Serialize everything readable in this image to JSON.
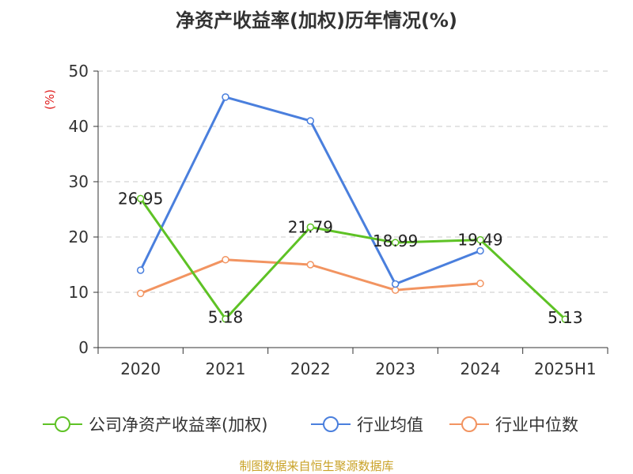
{
  "chart_data": {
    "type": "line",
    "title": "净资产收益率(加权)历年情况(%)",
    "ylabel": "(%)",
    "xlabel": "",
    "categories": [
      "2020",
      "2021",
      "2022",
      "2023",
      "2024",
      "2025H1"
    ],
    "ylim": [
      0,
      50
    ],
    "yticks": [
      0,
      10,
      20,
      30,
      40,
      50
    ],
    "grid": true,
    "legend_position": "bottom",
    "series": [
      {
        "name": "公司净资产收益率(加权)",
        "color": "#5ec225",
        "values": [
          26.95,
          5.18,
          21.79,
          18.99,
          19.49,
          5.13
        ],
        "show_labels": true
      },
      {
        "name": "行业均值",
        "color": "#4a7fdd",
        "values": [
          14.0,
          45.3,
          41.0,
          11.5,
          17.5,
          null
        ],
        "show_labels": false
      },
      {
        "name": "行业中位数",
        "color": "#f29461",
        "values": [
          9.8,
          15.9,
          15.0,
          10.4,
          11.6,
          null
        ],
        "show_labels": false
      }
    ]
  },
  "footer": {
    "source": "制图数据来自恒生聚源数据库"
  }
}
